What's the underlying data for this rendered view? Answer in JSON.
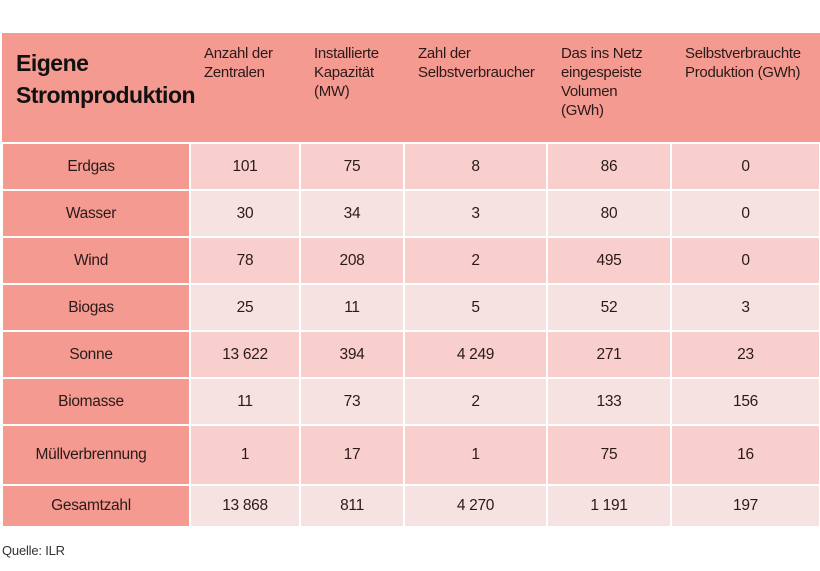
{
  "table": {
    "title": "Eigene Stromproduktion",
    "headers": [
      "Anzahl der Zentralen",
      "Installierte Kapazität (MW)",
      "Zahl der Selbstverbraucher",
      "Das ins Netz eingespeiste Volumen (GWh)",
      "Selbstverbrauchte Produktion (GWh)"
    ],
    "rows": [
      {
        "label": "Erdgas",
        "values": [
          "101",
          "75",
          "8",
          "86",
          "0"
        ]
      },
      {
        "label": "Wasser",
        "values": [
          "30",
          "34",
          "3",
          "80",
          "0"
        ]
      },
      {
        "label": "Wind",
        "values": [
          "78",
          "208",
          "2",
          "495",
          "0"
        ]
      },
      {
        "label": "Biogas",
        "values": [
          "25",
          "11",
          "5",
          "52",
          "3"
        ]
      },
      {
        "label": "Sonne",
        "values": [
          "13 622",
          "394",
          "4 249",
          "271",
          "23"
        ]
      },
      {
        "label": "Biomasse",
        "values": [
          "11",
          "73",
          "2",
          "133",
          "156"
        ]
      },
      {
        "label": "Müllverbrennung",
        "values": [
          "1",
          "17",
          "1",
          "75",
          "16"
        ]
      },
      {
        "label": "Gesamtzahl",
        "values": [
          "13 868",
          "811",
          "4 270",
          "1 191",
          "197"
        ]
      }
    ]
  },
  "source": "Quelle: ILR",
  "colors": {
    "header": "#f49a90",
    "row_odd": "#f8cfcc",
    "row_even": "#f7e2e2"
  }
}
